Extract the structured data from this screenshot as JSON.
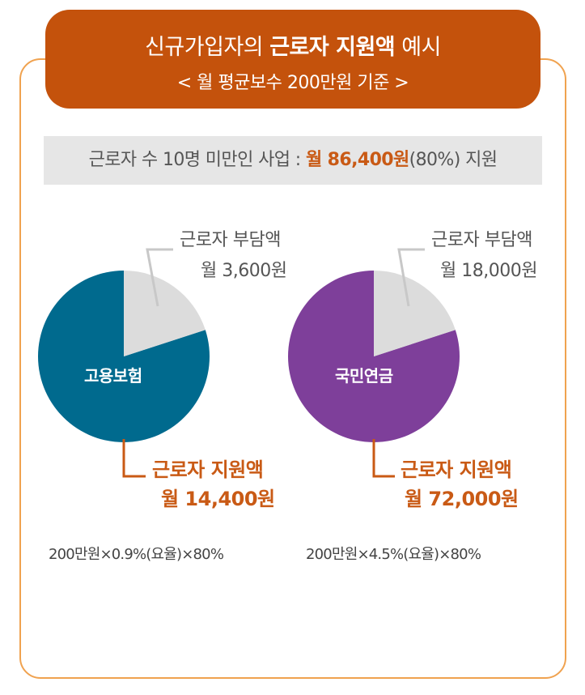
{
  "banner": {
    "title_prefix": "신규가입자의 ",
    "title_bold": "근로자 지원액",
    "title_suffix": " 예시",
    "subtitle": "< 월 평균보수 200만원 기준 >"
  },
  "summary": {
    "prefix": "근로자 수 10명 미만인 사업 : ",
    "highlight": "월 86,400원",
    "suffix": "(80%) 지원"
  },
  "colors": {
    "employment_insurance": "#006a8e",
    "national_pension": "#7e3f9a",
    "worker_share": "#dcdcdc",
    "accent": "#c95a15",
    "banner": "#c4520c",
    "frame": "#f0a24f"
  },
  "chart_data": [
    {
      "type": "pie",
      "center_label": "고용보험",
      "slices": [
        {
          "label": "근로자 부담액",
          "value_text": "월 3,600원",
          "value": 3600
        },
        {
          "label": "근로자 지원액",
          "value_text": "월 14,400원",
          "value": 14400
        }
      ],
      "formula": "200만원×0.9%(요율)×80%"
    },
    {
      "type": "pie",
      "center_label": "국민연금",
      "slices": [
        {
          "label": "근로자 부담액",
          "value_text": "월 18,000원",
          "value": 18000
        },
        {
          "label": "근로자 지원액",
          "value_text": "월 72,000원",
          "value": 72000
        }
      ],
      "formula": "200만원×4.5%(요율)×80%"
    }
  ]
}
